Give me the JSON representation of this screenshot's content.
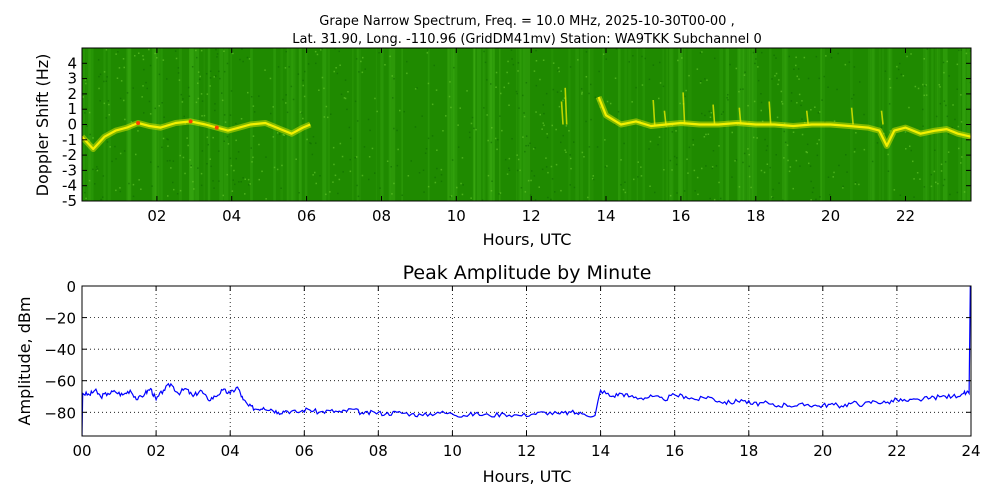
{
  "chart_data": [
    {
      "type": "heatmap",
      "title_line1": "Grape Narrow Spectrum, Freq. = 10.0 MHz, 2025-10-30T00-00 ,",
      "title_line2": "Lat.  31.90, Long. -110.96 (GridDM41mv) Station: WA9TKK Subchannel 0",
      "xlabel": "Hours, UTC",
      "ylabel": "Doppler Shift (Hz)",
      "xlim": [
        0,
        23.75
      ],
      "ylim": [
        -5,
        5
      ],
      "x_ticks": [
        2,
        4,
        6,
        8,
        10,
        12,
        14,
        16,
        18,
        20,
        22
      ],
      "x_tick_labels": [
        "02",
        "04",
        "06",
        "08",
        "10",
        "12",
        "14",
        "16",
        "18",
        "20",
        "22"
      ],
      "y_ticks": [
        -5,
        -4,
        -3,
        -2,
        -1,
        0,
        1,
        2,
        3,
        4
      ],
      "y_tick_labels": [
        "-5",
        "-4",
        "-3",
        "-2",
        "-1",
        "0",
        "1",
        "2",
        "3",
        "4"
      ],
      "colors": {
        "background": "#1f8a00",
        "signal": "#f4f000",
        "peak": "#ff4000",
        "frame": "#000000"
      },
      "trace": [
        [
          0.0,
          -0.8
        ],
        [
          0.3,
          -1.6
        ],
        [
          0.6,
          -0.8
        ],
        [
          0.9,
          -0.4
        ],
        [
          1.2,
          -0.2
        ],
        [
          1.5,
          0.1
        ],
        [
          1.8,
          -0.1
        ],
        [
          2.1,
          -0.2
        ],
        [
          2.5,
          0.1
        ],
        [
          2.9,
          0.2
        ],
        [
          3.3,
          0.0
        ],
        [
          3.6,
          -0.2
        ],
        [
          3.9,
          -0.4
        ],
        [
          4.2,
          -0.2
        ],
        [
          4.5,
          0.0
        ],
        [
          4.9,
          0.1
        ],
        [
          5.3,
          -0.3
        ],
        [
          5.6,
          -0.6
        ],
        [
          5.9,
          -0.2
        ],
        [
          6.1,
          0.0
        ],
        [
          13.8,
          1.8
        ],
        [
          14.0,
          0.6
        ],
        [
          14.4,
          0.0
        ],
        [
          14.8,
          0.2
        ],
        [
          15.2,
          -0.1
        ],
        [
          15.6,
          0.0
        ],
        [
          16.0,
          0.1
        ],
        [
          16.5,
          0.0
        ],
        [
          17.0,
          0.0
        ],
        [
          17.5,
          0.1
        ],
        [
          18.0,
          0.0
        ],
        [
          18.5,
          0.0
        ],
        [
          19.0,
          -0.1
        ],
        [
          19.5,
          0.0
        ],
        [
          20.0,
          0.0
        ],
        [
          20.5,
          -0.1
        ],
        [
          21.0,
          -0.2
        ],
        [
          21.3,
          -0.4
        ],
        [
          21.5,
          -1.4
        ],
        [
          21.7,
          -0.4
        ],
        [
          22.0,
          -0.2
        ],
        [
          22.4,
          -0.6
        ],
        [
          22.8,
          -0.4
        ],
        [
          23.1,
          -0.3
        ],
        [
          23.4,
          -0.6
        ],
        [
          23.75,
          -0.8
        ]
      ],
      "bursts": [
        [
          12.85,
          1.5
        ],
        [
          12.95,
          2.4
        ],
        [
          15.3,
          1.6
        ],
        [
          15.6,
          0.9
        ],
        [
          16.1,
          2.1
        ],
        [
          16.9,
          1.3
        ],
        [
          17.6,
          1.1
        ],
        [
          18.4,
          1.5
        ],
        [
          19.4,
          0.9
        ],
        [
          20.6,
          1.1
        ],
        [
          21.4,
          0.9
        ]
      ]
    },
    {
      "type": "line",
      "title": "Peak Amplitude by Minute",
      "xlabel": "Hours, UTC",
      "ylabel": "Amplitude, dBm",
      "xlim": [
        0,
        24
      ],
      "ylim": [
        -95,
        0
      ],
      "grid": true,
      "x_ticks": [
        0,
        2,
        4,
        6,
        8,
        10,
        12,
        14,
        16,
        18,
        20,
        22,
        24
      ],
      "x_tick_labels": [
        "00",
        "02",
        "04",
        "06",
        "08",
        "10",
        "12",
        "14",
        "16",
        "18",
        "20",
        "22",
        "24"
      ],
      "y_ticks": [
        0,
        -20,
        -40,
        -60,
        -80
      ],
      "y_tick_labels": [
        "0",
        "−20",
        "−40",
        "−60",
        "−80"
      ],
      "line_color": "#0000ff",
      "series": [
        {
          "x": [
            0,
            0.02,
            0.2,
            0.35,
            0.5,
            0.7,
            0.9,
            1.1,
            1.3,
            1.5,
            1.7,
            1.85,
            2.0,
            2.2,
            2.4,
            2.6,
            2.8,
            3.0,
            3.2,
            3.4,
            3.6,
            3.8,
            4.0,
            4.2,
            4.35,
            4.5,
            4.7,
            4.9,
            5.1,
            5.3,
            5.5,
            5.8,
            6.1,
            6.4,
            6.7,
            7.0,
            7.3,
            7.6,
            7.9,
            8.2,
            8.5,
            8.9,
            9.2,
            9.6,
            10.0,
            10.3,
            10.6,
            11.0,
            11.4,
            11.8,
            12.2,
            12.5,
            12.9,
            13.2,
            13.5,
            13.85,
            14.0,
            14.3,
            14.55,
            14.8,
            15.1,
            15.4,
            15.7,
            16.0,
            16.3,
            16.6,
            16.9,
            17.2,
            17.5,
            17.8,
            18.1,
            18.4,
            18.7,
            19.0,
            19.3,
            19.6,
            19.9,
            20.2,
            20.5,
            20.8,
            21.1,
            21.4,
            21.7,
            22.0,
            22.3,
            22.6,
            22.9,
            23.2,
            23.5,
            23.8,
            23.95,
            23.98,
            24.0
          ],
          "y": [
            -95,
            -68,
            -69,
            -66,
            -70,
            -68,
            -67,
            -69,
            -66,
            -72,
            -68,
            -65,
            -72,
            -66,
            -62,
            -68,
            -65,
            -70,
            -66,
            -72,
            -70,
            -66,
            -68,
            -64,
            -72,
            -76,
            -78,
            -77,
            -78,
            -80,
            -79,
            -80,
            -78,
            -80,
            -79,
            -80,
            -78,
            -81,
            -80,
            -81,
            -80,
            -81,
            -82,
            -80,
            -81,
            -82,
            -81,
            -82,
            -81,
            -82,
            -81,
            -80,
            -81,
            -80,
            -81,
            -82,
            -66,
            -70,
            -68,
            -70,
            -71,
            -70,
            -72,
            -69,
            -70,
            -72,
            -70,
            -73,
            -74,
            -72,
            -75,
            -74,
            -76,
            -75,
            -76,
            -75,
            -76,
            -75,
            -76,
            -74,
            -75,
            -73,
            -74,
            -72,
            -73,
            -72,
            -71,
            -70,
            -70,
            -68,
            -68,
            0,
            0
          ]
        }
      ]
    }
  ]
}
